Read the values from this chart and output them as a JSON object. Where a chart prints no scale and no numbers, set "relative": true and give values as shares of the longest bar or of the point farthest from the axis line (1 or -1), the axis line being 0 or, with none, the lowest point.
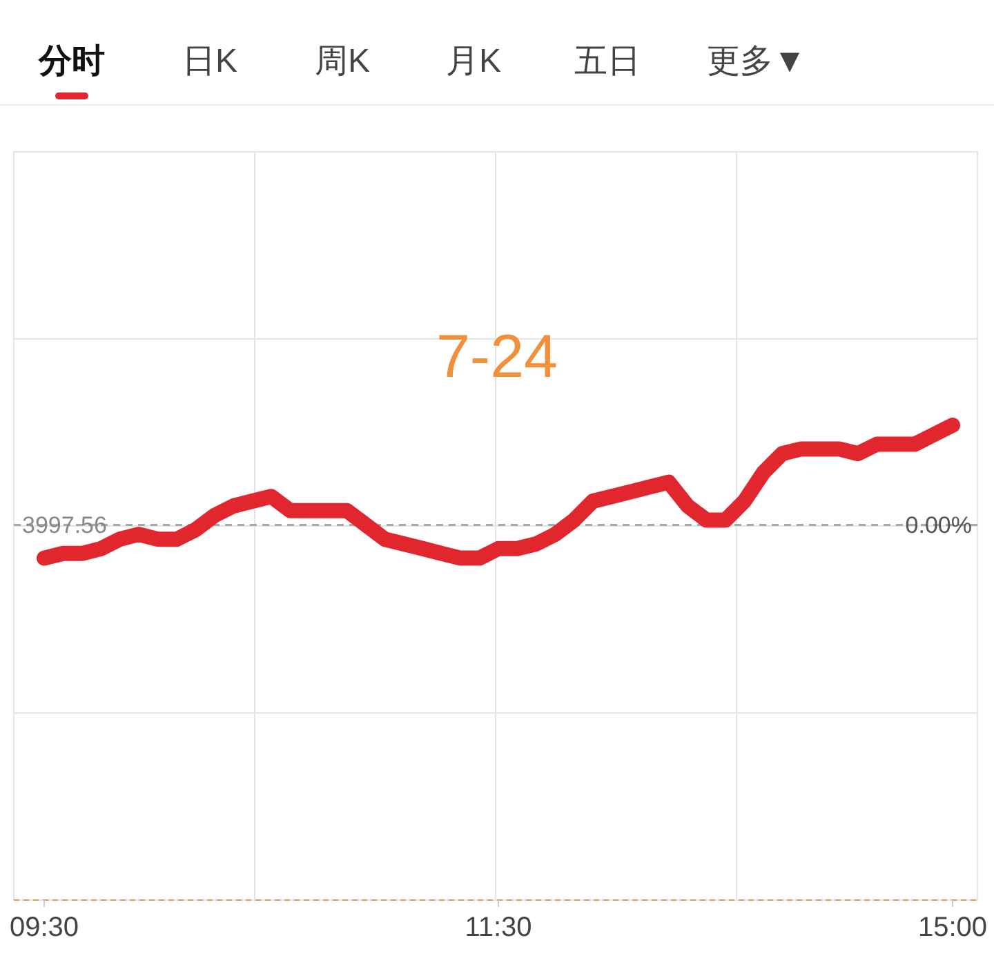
{
  "chart_data": {
    "type": "line",
    "relative": true,
    "grid": true,
    "line_style": "solid",
    "categories": [
      "09:30",
      null,
      null,
      null,
      null,
      null,
      null,
      null,
      null,
      null,
      null,
      null,
      null,
      null,
      null,
      null,
      null,
      null,
      null,
      null,
      null,
      null,
      null,
      null,
      "11:30",
      null,
      null,
      null,
      null,
      null,
      null,
      null,
      null,
      null,
      null,
      null,
      null,
      null,
      null,
      null,
      null,
      null,
      null,
      null,
      null,
      null,
      null,
      null,
      "15:00"
    ],
    "series": [
      {
        "color": "#e1272d",
        "values": [
          0.72,
          0.73,
          0.73,
          0.74,
          0.76,
          0.77,
          0.76,
          0.76,
          0.78,
          0.81,
          0.83,
          0.84,
          0.85,
          0.82,
          0.82,
          0.82,
          0.82,
          0.79,
          0.76,
          0.75,
          0.74,
          0.73,
          0.72,
          0.72,
          0.74,
          0.74,
          0.75,
          0.77,
          0.8,
          0.84,
          0.85,
          0.86,
          0.87,
          0.88,
          0.83,
          0.8,
          0.8,
          0.84,
          0.9,
          0.94,
          0.95,
          0.95,
          0.95,
          0.94,
          0.96,
          0.96,
          0.96,
          0.98,
          1
        ]
      }
    ],
    "ref_lines": [
      {
        "axis": "y",
        "value": 0.79,
        "color": "#999999",
        "line_style": "dashed"
      }
    ],
    "annotations": [
      "分时",
      "日K",
      "周K",
      "月K",
      "五日",
      "更多▼",
      "7-24",
      "3997.56",
      "0.00%"
    ]
  }
}
